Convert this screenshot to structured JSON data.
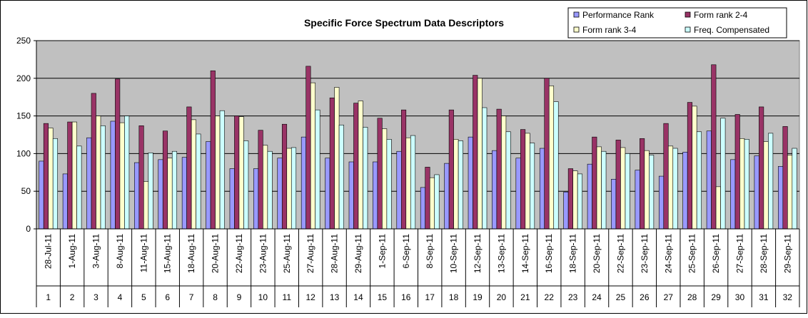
{
  "chart_data": {
    "type": "bar",
    "title": "Specific Force Spectrum Data Descriptors",
    "xlabel": "",
    "ylabel": "",
    "ylim": [
      0,
      250
    ],
    "yticks": [
      0,
      50,
      100,
      150,
      200,
      250
    ],
    "grid": true,
    "legend_position": "top-right",
    "plot_background": "#C0C0C0",
    "categories": [
      "1",
      "2",
      "3",
      "4",
      "5",
      "6",
      "7",
      "8",
      "9",
      "10",
      "11",
      "12",
      "13",
      "14",
      "15",
      "16",
      "17",
      "18",
      "19",
      "20",
      "21",
      "22",
      "23",
      "24",
      "25",
      "26",
      "27",
      "28",
      "29",
      "30",
      "31",
      "32"
    ],
    "dates": [
      "28-Jul-11",
      "1-Aug-11",
      "3-Aug-11",
      "8-Aug-11",
      "11-Aug-11",
      "15-Aug-11",
      "18-Aug-11",
      "20-Aug-11",
      "22-Aug-11",
      "23-Aug-11",
      "25-Aug-11",
      "27-Aug-11",
      "28-Aug-11",
      "29-Aug-11",
      "1-Sep-11",
      "6-Sep-11",
      "8-Sep-11",
      "10-Sep-11",
      "12-Sep-11",
      "13-Sep-11",
      "14-Sep-11",
      "16-Sep-11",
      "18-Sep-11",
      "20-Sep-11",
      "22-Sep-11",
      "23-Sep-11",
      "24-Sep-11",
      "25-Sep-11",
      "26-Sep-11",
      "27-Sep-11",
      "28-Sep-11",
      "29-Sep-11"
    ],
    "series": [
      {
        "name": "Performance Rank",
        "color": "#9999FF",
        "values": [
          90,
          73,
          121,
          143,
          88,
          92,
          95,
          116,
          80,
          80,
          94,
          122,
          94,
          89,
          89,
          103,
          55,
          87,
          122,
          104,
          94,
          107,
          49,
          86,
          66,
          78,
          70,
          102,
          130,
          92,
          97,
          83
        ]
      },
      {
        "name": "Form rank 2-4",
        "color": "#993366",
        "values": [
          140,
          142,
          180,
          199,
          137,
          130,
          162,
          210,
          150,
          131,
          139,
          216,
          174,
          167,
          147,
          158,
          82,
          158,
          204,
          159,
          132,
          200,
          80,
          122,
          118,
          120,
          140,
          168,
          218,
          152,
          162,
          136
        ]
      },
      {
        "name": "Form rank 3-4",
        "color": "#FFFFCC",
        "values": [
          134,
          142,
          150,
          141,
          63,
          94,
          145,
          150,
          149,
          111,
          107,
          194,
          188,
          170,
          133,
          121,
          68,
          119,
          200,
          150,
          127,
          190,
          77,
          109,
          108,
          104,
          110,
          163,
          56,
          120,
          116,
          98
        ]
      },
      {
        "name": "Freq. Compensated",
        "color": "#CCFFFF",
        "values": [
          120,
          110,
          137,
          150,
          101,
          103,
          126,
          157,
          117,
          103,
          108,
          158,
          138,
          135,
          119,
          124,
          72,
          117,
          161,
          129,
          114,
          169,
          73,
          103,
          100,
          98,
          107,
          129,
          147,
          119,
          127,
          107
        ]
      }
    ]
  }
}
